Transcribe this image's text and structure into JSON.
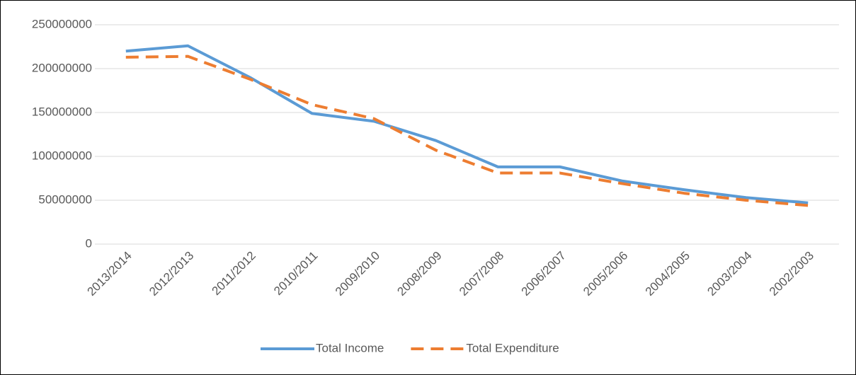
{
  "chart_data": {
    "type": "line",
    "categories": [
      "2013/2014",
      "2012/2013",
      "2011/2012",
      "2010/2011",
      "2009/2010",
      "2008/2009",
      "2007/2008",
      "2006/2007",
      "2005/2006",
      "2004/2005",
      "2003/2004",
      "2002/2003"
    ],
    "series": [
      {
        "name": "Total Income",
        "color": "#5b9bd5",
        "dash": false,
        "values": [
          220000000,
          226000000,
          190000000,
          149000000,
          140000000,
          118000000,
          88000000,
          88000000,
          72000000,
          62000000,
          53000000,
          47000000
        ]
      },
      {
        "name": "Total Expenditure",
        "color": "#ed7d31",
        "dash": true,
        "values": [
          213000000,
          214000000,
          188000000,
          159000000,
          143000000,
          107000000,
          81000000,
          81000000,
          69000000,
          58000000,
          50000000,
          44000000
        ]
      }
    ],
    "ylim": [
      0,
      250000000
    ],
    "yticks": [
      0,
      50000000,
      100000000,
      150000000,
      200000000,
      250000000
    ],
    "grid": true,
    "legend": "bottom"
  }
}
